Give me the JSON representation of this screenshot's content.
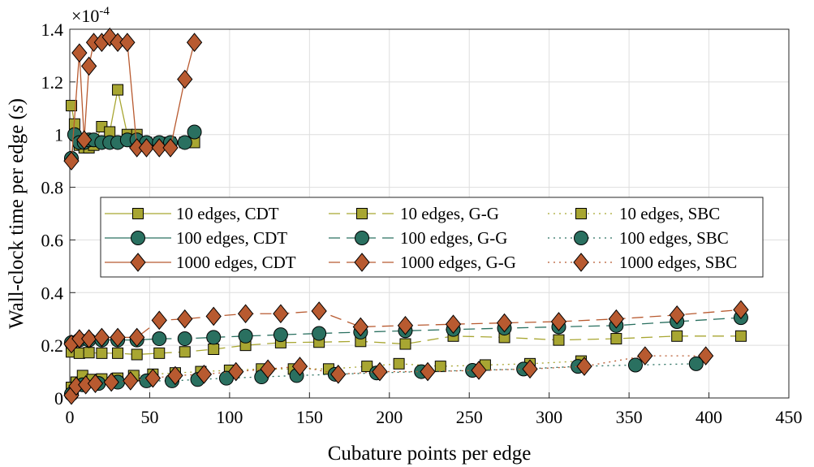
{
  "chart_data": {
    "type": "line",
    "xlabel": "Cubature points per edge",
    "ylabel_prefix": "Wall-clock time per edge (",
    "ylabel_unit": "s",
    "ylabel_suffix": ")",
    "y_multiplier_base": "×10",
    "y_multiplier_exp": "-4",
    "xlim": [
      0,
      450
    ],
    "ylim": [
      0,
      1.4
    ],
    "xticks": [
      0,
      50,
      100,
      150,
      200,
      250,
      300,
      350,
      400,
      450
    ],
    "yticks": [
      0,
      0.2,
      0.4,
      0.6,
      0.8,
      1,
      1.2,
      1.4
    ],
    "ytick_labels": [
      "0",
      "0.2",
      "0.4",
      "0.6",
      "0.8",
      "1",
      "1.2",
      "1.4"
    ],
    "grid": true,
    "legend_position": "center-left",
    "colors": {
      "10": "#a8a632",
      "100": "#2a7060",
      "1000": "#b85a30"
    },
    "series": [
      {
        "name": "10 edges, CDT",
        "edges": "10",
        "marker": "square",
        "dash": "solid",
        "x": [
          1,
          3,
          6,
          9,
          12,
          15,
          20,
          25,
          30,
          36,
          42,
          48,
          56,
          63,
          72,
          78
        ],
        "y": [
          1.11,
          1.04,
          0.96,
          0.95,
          0.95,
          0.96,
          1.03,
          1.01,
          1.17,
          1.0,
          1.0,
          0.97,
          0.97,
          0.97,
          0.97,
          0.97
        ]
      },
      {
        "name": "100 edges, CDT",
        "edges": "100",
        "marker": "circle",
        "dash": "solid",
        "x": [
          1,
          3,
          6,
          9,
          12,
          15,
          20,
          25,
          30,
          36,
          42,
          48,
          56,
          63,
          72,
          78
        ],
        "y": [
          0.91,
          1.0,
          0.97,
          0.97,
          0.98,
          0.98,
          0.97,
          0.97,
          0.97,
          0.98,
          0.98,
          0.97,
          0.97,
          0.97,
          0.97,
          1.01
        ]
      },
      {
        "name": "1000 edges, CDT",
        "edges": "1000",
        "marker": "diamond",
        "dash": "solid",
        "x": [
          1,
          6,
          9,
          12,
          15,
          20,
          25,
          30,
          36,
          42,
          48,
          56,
          63,
          72,
          78
        ],
        "y": [
          0.9,
          1.31,
          0.98,
          1.26,
          1.35,
          1.35,
          1.37,
          1.35,
          1.35,
          0.95,
          0.95,
          0.95,
          0.95,
          1.21,
          1.35
        ]
      },
      {
        "name": "10 edges, G-G",
        "edges": "10",
        "marker": "square",
        "dash": "dashed",
        "x": [
          1,
          6,
          12,
          20,
          30,
          42,
          56,
          72,
          90,
          110,
          132,
          156,
          182,
          210,
          240,
          272,
          306,
          342,
          380,
          420
        ],
        "y": [
          0.175,
          0.17,
          0.172,
          0.17,
          0.17,
          0.165,
          0.17,
          0.175,
          0.185,
          0.2,
          0.21,
          0.212,
          0.215,
          0.205,
          0.235,
          0.23,
          0.22,
          0.225,
          0.235,
          0.235
        ]
      },
      {
        "name": "100 edges, G-G",
        "edges": "100",
        "marker": "circle",
        "dash": "dashed",
        "x": [
          1,
          6,
          12,
          20,
          30,
          42,
          56,
          72,
          90,
          110,
          132,
          156,
          182,
          210,
          240,
          272,
          306,
          342,
          380,
          420
        ],
        "y": [
          0.21,
          0.22,
          0.22,
          0.22,
          0.22,
          0.22,
          0.225,
          0.225,
          0.23,
          0.235,
          0.24,
          0.245,
          0.25,
          0.255,
          0.26,
          0.265,
          0.27,
          0.275,
          0.29,
          0.305
        ]
      },
      {
        "name": "1000 edges, G-G",
        "edges": "1000",
        "marker": "diamond",
        "dash": "dashed",
        "x": [
          1,
          6,
          12,
          20,
          30,
          42,
          56,
          72,
          90,
          110,
          132,
          156,
          182,
          210,
          240,
          272,
          306,
          342,
          380,
          420
        ],
        "y": [
          0.205,
          0.225,
          0.225,
          0.23,
          0.23,
          0.23,
          0.295,
          0.3,
          0.31,
          0.32,
          0.32,
          0.33,
          0.27,
          0.275,
          0.28,
          0.285,
          0.29,
          0.3,
          0.315,
          0.335
        ]
      },
      {
        "name": "10 edges, SBC",
        "edges": "10",
        "marker": "square",
        "dash": "dotted",
        "x": [
          1,
          4,
          8,
          14,
          20,
          30,
          40,
          52,
          66,
          82,
          100,
          120,
          140,
          162,
          186,
          206,
          232,
          260,
          288,
          320
        ],
        "y": [
          0.04,
          0.06,
          0.085,
          0.07,
          0.072,
          0.075,
          0.085,
          0.09,
          0.095,
          0.1,
          0.105,
          0.11,
          0.11,
          0.11,
          0.12,
          0.13,
          0.12,
          0.125,
          0.13,
          0.14
        ]
      },
      {
        "name": "100 edges, SBC",
        "edges": "100",
        "marker": "circle",
        "dash": "dotted",
        "x": [
          1,
          8,
          18,
          30,
          48,
          64,
          80,
          98,
          120,
          142,
          166,
          192,
          220,
          252,
          284,
          318,
          354,
          392
        ],
        "y": [
          0.015,
          0.05,
          0.055,
          0.06,
          0.065,
          0.065,
          0.07,
          0.075,
          0.08,
          0.085,
          0.09,
          0.095,
          0.1,
          0.105,
          0.11,
          0.12,
          0.125,
          0.13
        ]
      },
      {
        "name": "1000 edges, SBC",
        "edges": "1000",
        "marker": "diamond",
        "dash": "dotted",
        "x": [
          1,
          4,
          10,
          16,
          26,
          38,
          52,
          66,
          84,
          104,
          124,
          144,
          168,
          194,
          224,
          256,
          288,
          322,
          360,
          398
        ],
        "y": [
          0.01,
          0.045,
          0.05,
          0.055,
          0.06,
          0.065,
          0.075,
          0.085,
          0.09,
          0.1,
          0.11,
          0.12,
          0.09,
          0.1,
          0.1,
          0.105,
          0.11,
          0.12,
          0.16,
          0.16
        ]
      }
    ]
  }
}
